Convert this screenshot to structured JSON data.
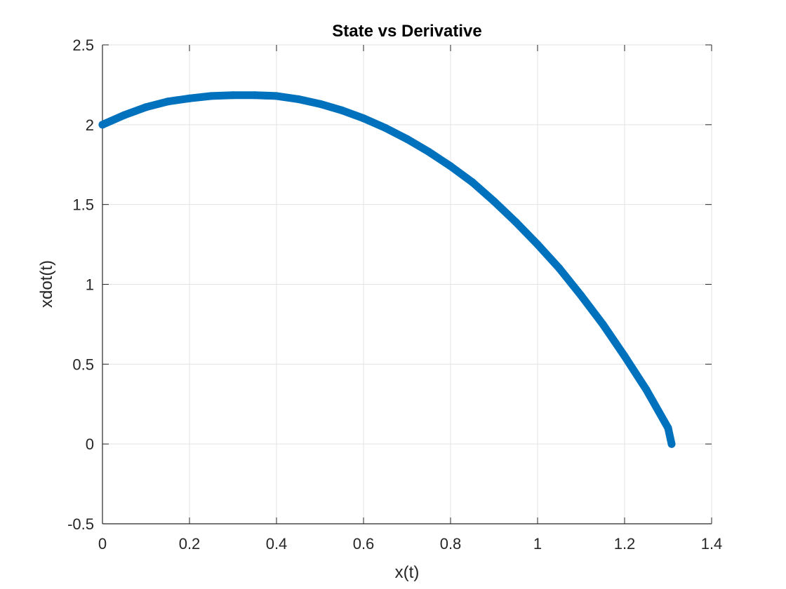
{
  "chart_data": {
    "type": "scatter",
    "title": "State vs Derivative",
    "xlabel": "x(t)",
    "ylabel": "xdot(t)",
    "xlim": [
      0,
      1.4
    ],
    "ylim": [
      -0.5,
      2.5
    ],
    "xticks": [
      "0",
      "0.2",
      "0.4",
      "0.6",
      "0.8",
      "1",
      "1.2",
      "1.4"
    ],
    "yticks": [
      "-0.5",
      "0",
      "0.5",
      "1",
      "1.5",
      "2",
      "2.5"
    ],
    "grid": true,
    "series": [
      {
        "color": "#0072BD",
        "x": [
          0,
          0.05,
          0.1,
          0.15,
          0.2,
          0.25,
          0.3,
          0.35,
          0.4,
          0.45,
          0.5,
          0.55,
          0.6,
          0.65,
          0.7,
          0.75,
          0.8,
          0.85,
          0.9,
          0.95,
          1.0,
          1.05,
          1.1,
          1.15,
          1.2,
          1.25,
          1.3,
          1.308
        ],
        "y": [
          2.0,
          2.06,
          2.11,
          2.145,
          2.165,
          2.18,
          2.185,
          2.185,
          2.18,
          2.16,
          2.13,
          2.09,
          2.04,
          1.98,
          1.91,
          1.83,
          1.74,
          1.64,
          1.52,
          1.39,
          1.25,
          1.1,
          0.93,
          0.75,
          0.55,
          0.34,
          0.1,
          0.0
        ]
      }
    ]
  }
}
